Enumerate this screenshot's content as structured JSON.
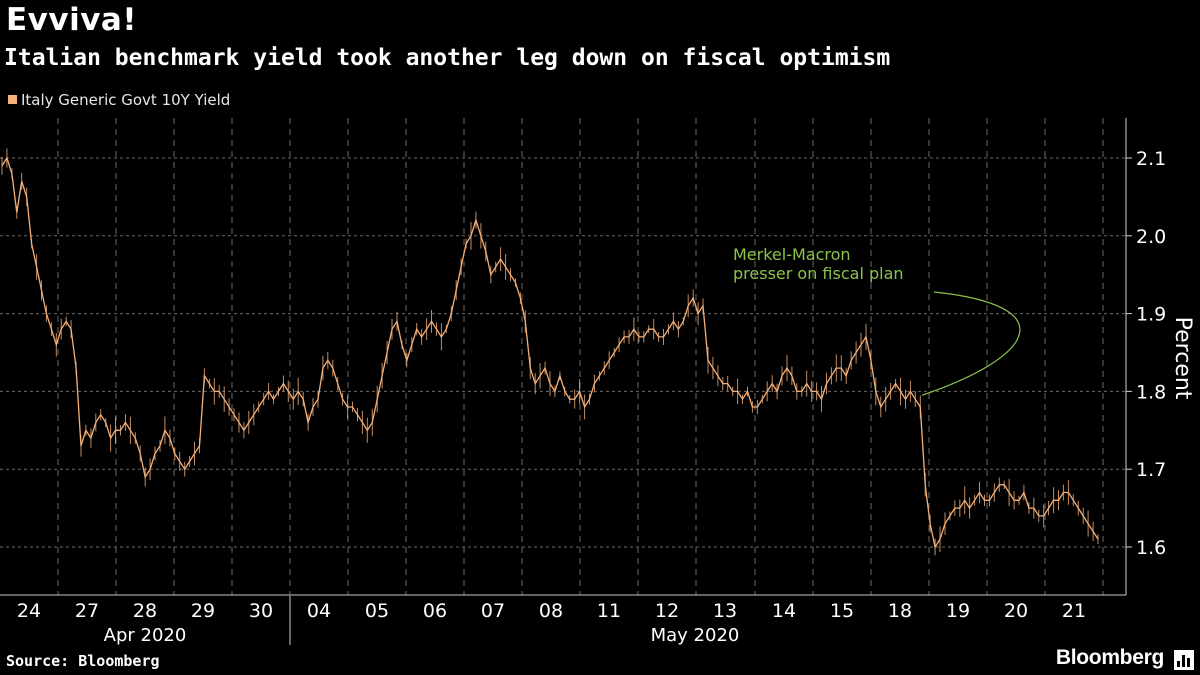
{
  "title": "Evviva!",
  "subtitle": "Italian benchmark yield took another leg down on fiscal optimism",
  "source": "Source: Bloomberg",
  "brand": "Bloomberg",
  "colors": {
    "series": "#f5b079",
    "annotation": "#8bc34a",
    "grid": "#6a6a6a",
    "background": "#000000"
  },
  "chart_data": {
    "type": "line",
    "title": "Evviva!",
    "subtitle": "Italian benchmark yield took another leg down on fiscal optimism",
    "series": [
      {
        "name": "Italy Generic Govt 10Y Yield",
        "values": [
          2.09,
          2.1,
          2.08,
          2.03,
          2.07,
          2.05,
          1.99,
          1.96,
          1.93,
          1.9,
          1.88,
          1.86,
          1.88,
          1.89,
          1.88,
          1.83,
          1.73,
          1.75,
          1.74,
          1.76,
          1.77,
          1.76,
          1.74,
          1.75,
          1.75,
          1.76,
          1.75,
          1.74,
          1.72,
          1.69,
          1.7,
          1.72,
          1.73,
          1.75,
          1.74,
          1.72,
          1.71,
          1.7,
          1.71,
          1.72,
          1.73,
          1.82,
          1.81,
          1.8,
          1.8,
          1.79,
          1.78,
          1.77,
          1.76,
          1.75,
          1.76,
          1.77,
          1.78,
          1.79,
          1.8,
          1.79,
          1.8,
          1.81,
          1.8,
          1.79,
          1.8,
          1.79,
          1.76,
          1.78,
          1.79,
          1.83,
          1.84,
          1.83,
          1.81,
          1.79,
          1.78,
          1.78,
          1.77,
          1.76,
          1.75,
          1.76,
          1.79,
          1.82,
          1.85,
          1.88,
          1.89,
          1.86,
          1.84,
          1.86,
          1.88,
          1.87,
          1.88,
          1.89,
          1.88,
          1.87,
          1.88,
          1.9,
          1.93,
          1.96,
          1.99,
          2.0,
          2.02,
          2.0,
          1.98,
          1.95,
          1.96,
          1.97,
          1.96,
          1.95,
          1.94,
          1.92,
          1.89,
          1.83,
          1.81,
          1.82,
          1.83,
          1.81,
          1.8,
          1.82,
          1.8,
          1.79,
          1.79,
          1.8,
          1.78,
          1.79,
          1.81,
          1.82,
          1.83,
          1.84,
          1.85,
          1.86,
          1.87,
          1.87,
          1.88,
          1.87,
          1.87,
          1.88,
          1.88,
          1.87,
          1.87,
          1.88,
          1.89,
          1.88,
          1.89,
          1.91,
          1.92,
          1.9,
          1.91,
          1.84,
          1.83,
          1.82,
          1.81,
          1.81,
          1.8,
          1.8,
          1.79,
          1.8,
          1.78,
          1.78,
          1.79,
          1.8,
          1.81,
          1.8,
          1.82,
          1.83,
          1.82,
          1.8,
          1.8,
          1.81,
          1.8,
          1.8,
          1.79,
          1.81,
          1.82,
          1.83,
          1.83,
          1.82,
          1.84,
          1.85,
          1.86,
          1.87,
          1.84,
          1.8,
          1.78,
          1.79,
          1.8,
          1.81,
          1.8,
          1.79,
          1.8,
          1.79,
          1.78,
          1.68,
          1.63,
          1.6,
          1.61,
          1.63,
          1.64,
          1.65,
          1.65,
          1.66,
          1.65,
          1.66,
          1.67,
          1.66,
          1.66,
          1.67,
          1.68,
          1.68,
          1.67,
          1.66,
          1.66,
          1.67,
          1.65,
          1.65,
          1.64,
          1.64,
          1.65,
          1.66,
          1.66,
          1.67,
          1.67,
          1.66,
          1.65,
          1.64,
          1.63,
          1.62,
          1.61
        ]
      }
    ],
    "ylim": [
      1.54,
      2.14
    ],
    "yticks": [
      1.6,
      1.7,
      1.8,
      1.9,
      2.0,
      2.1
    ],
    "ytick_labels": [
      "1.6",
      "1.7",
      "1.8",
      "1.9",
      "2.0",
      "2.1"
    ],
    "ylabel": "Percent",
    "x_day_labels": [
      "24",
      "27",
      "28",
      "29",
      "30",
      "04",
      "05",
      "06",
      "07",
      "08",
      "11",
      "12",
      "13",
      "14",
      "15",
      "18",
      "19",
      "20",
      "21"
    ],
    "month_labels": [
      "Apr 2020",
      "May 2020"
    ],
    "annotation": {
      "lines": [
        "Merkel-Macron",
        "presser on fiscal plan"
      ],
      "x_day": "18",
      "y": 1.795
    },
    "grid": true,
    "legend_position": "top-left"
  }
}
